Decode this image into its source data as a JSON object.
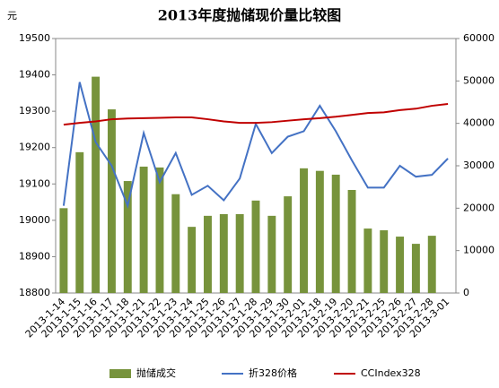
{
  "chart_data": {
    "type": "bar-line",
    "title": "2013年度抛储现价量比较图",
    "y_label": "元",
    "categories": [
      "2013-1-14",
      "2013-1-15",
      "2013-1-16",
      "2013-1-17",
      "2013-1-18",
      "2013-1-21",
      "2013-1-22",
      "2013-1-23",
      "2013-1-24",
      "2013-1-25",
      "2013-1-26",
      "2013-1-27",
      "2013-1-28",
      "2013-1-29",
      "2013-1-30",
      "2013-2-01",
      "2013-2-18",
      "2013-2-19",
      "2013-2-20",
      "2013-2-21",
      "2013-2-25",
      "2013-2-26",
      "2013-2-27",
      "2013-2-28",
      "2013-3-01"
    ],
    "ylim": [
      18800,
      19500
    ],
    "yticks": [
      18800,
      18900,
      19000,
      19100,
      19200,
      19300,
      19400,
      19500
    ],
    "y2lim": [
      0,
      60000
    ],
    "y2ticks": [
      0,
      10000,
      20000,
      30000,
      40000,
      50000,
      60000
    ],
    "series": [
      {
        "name": "抛储成交",
        "color": "#77933c",
        "kind": "bar",
        "axis": "y2",
        "values": [
          20000,
          33200,
          51000,
          43300,
          26400,
          29800,
          29600,
          23300,
          15600,
          18200,
          18600,
          18600,
          21800,
          18200,
          22800,
          29400,
          28800,
          27900,
          24300,
          15200,
          14800,
          13300,
          11600,
          13500,
          null
        ]
      },
      {
        "name": "折328价格",
        "color": "#4472c4",
        "kind": "line",
        "values": [
          19040,
          19380,
          19215,
          19150,
          19040,
          19240,
          19105,
          19185,
          19070,
          19095,
          19055,
          19115,
          19265,
          19185,
          19230,
          19245,
          19315,
          19245,
          19165,
          19090,
          19090,
          19150,
          19120,
          19125,
          19170
        ]
      },
      {
        "name": "CCIndex328",
        "color": "#c00000",
        "kind": "line",
        "values": [
          19263,
          19268,
          19272,
          19278,
          19280,
          19281,
          19282,
          19283,
          19283,
          19278,
          19272,
          19268,
          19268,
          19270,
          19274,
          19278,
          19281,
          19285,
          19290,
          19295,
          19297,
          19303,
          19307,
          19315,
          19320
        ]
      }
    ]
  }
}
